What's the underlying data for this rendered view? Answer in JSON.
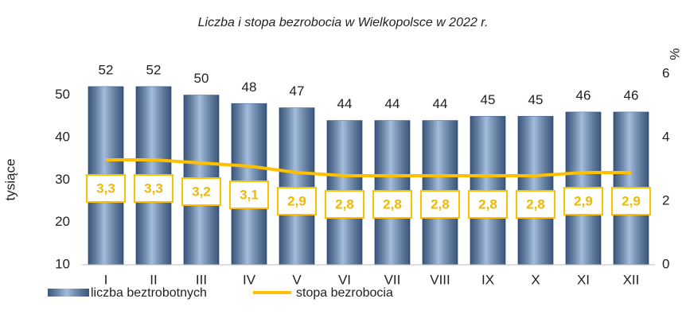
{
  "chart_data": {
    "type": "bar-line",
    "title": "Liczba i stopa bezrobocia w Wielkopolsce w 2022 r.",
    "ylabel": "tysiące",
    "y2label": "%",
    "categories": [
      "I",
      "II",
      "III",
      "IV",
      "V",
      "VI",
      "VII",
      "VIII",
      "IX",
      "X",
      "XI",
      "XII"
    ],
    "series": [
      {
        "name": "liczba beztrobotnych",
        "color": "#5b87c0",
        "type": "bar",
        "values": [
          52,
          52,
          50,
          48,
          47,
          44,
          44,
          44,
          45,
          45,
          46,
          46
        ]
      },
      {
        "name": "stopa bezrobocia",
        "color": "#ffc000",
        "type": "line",
        "axis": "y2",
        "values": [
          3.3,
          3.3,
          3.2,
          3.1,
          2.9,
          2.8,
          2.8,
          2.8,
          2.8,
          2.8,
          2.9,
          2.9
        ],
        "value_labels": [
          "3,3",
          "3,3",
          "3,2",
          "3,1",
          "2,9",
          "2,8",
          "2,8",
          "2,8",
          "2,8",
          "2,8",
          "2,9",
          "2,9"
        ]
      }
    ],
    "ylim": [
      10,
      55
    ],
    "yticks": [
      10,
      20,
      30,
      40,
      50
    ],
    "y2lim": [
      0,
      6
    ],
    "y2ticks": [
      0,
      2,
      4,
      6
    ]
  }
}
